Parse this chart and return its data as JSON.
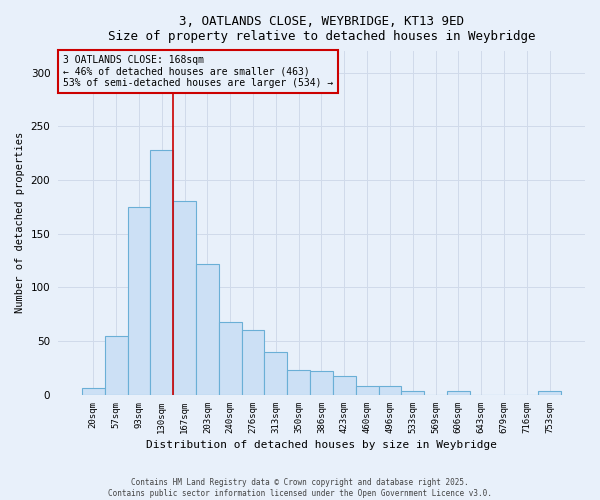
{
  "title_line1": "3, OATLANDS CLOSE, WEYBRIDGE, KT13 9ED",
  "title_line2": "Size of property relative to detached houses in Weybridge",
  "xlabel": "Distribution of detached houses by size in Weybridge",
  "ylabel": "Number of detached properties",
  "categories": [
    "20sqm",
    "57sqm",
    "93sqm",
    "130sqm",
    "167sqm",
    "203sqm",
    "240sqm",
    "276sqm",
    "313sqm",
    "350sqm",
    "386sqm",
    "423sqm",
    "460sqm",
    "496sqm",
    "533sqm",
    "569sqm",
    "606sqm",
    "643sqm",
    "679sqm",
    "716sqm",
    "753sqm"
  ],
  "values": [
    6,
    55,
    175,
    228,
    180,
    122,
    68,
    60,
    40,
    23,
    22,
    17,
    8,
    8,
    3,
    0,
    3,
    0,
    0,
    0,
    3
  ],
  "bar_color": "#cce0f5",
  "bar_edge_color": "#6aafd6",
  "bg_color": "#e8f0fa",
  "grid_color": "#d0daea",
  "annotation_box_color": "#cc0000",
  "property_line_x": 3.5,
  "annotation_text_line1": "3 OATLANDS CLOSE: 168sqm",
  "annotation_text_line2": "← 46% of detached houses are smaller (463)",
  "annotation_text_line3": "53% of semi-detached houses are larger (534) →",
  "footer_line1": "Contains HM Land Registry data © Crown copyright and database right 2025.",
  "footer_line2": "Contains public sector information licensed under the Open Government Licence v3.0.",
  "ylim": [
    0,
    320
  ],
  "yticks": [
    0,
    50,
    100,
    150,
    200,
    250,
    300
  ]
}
